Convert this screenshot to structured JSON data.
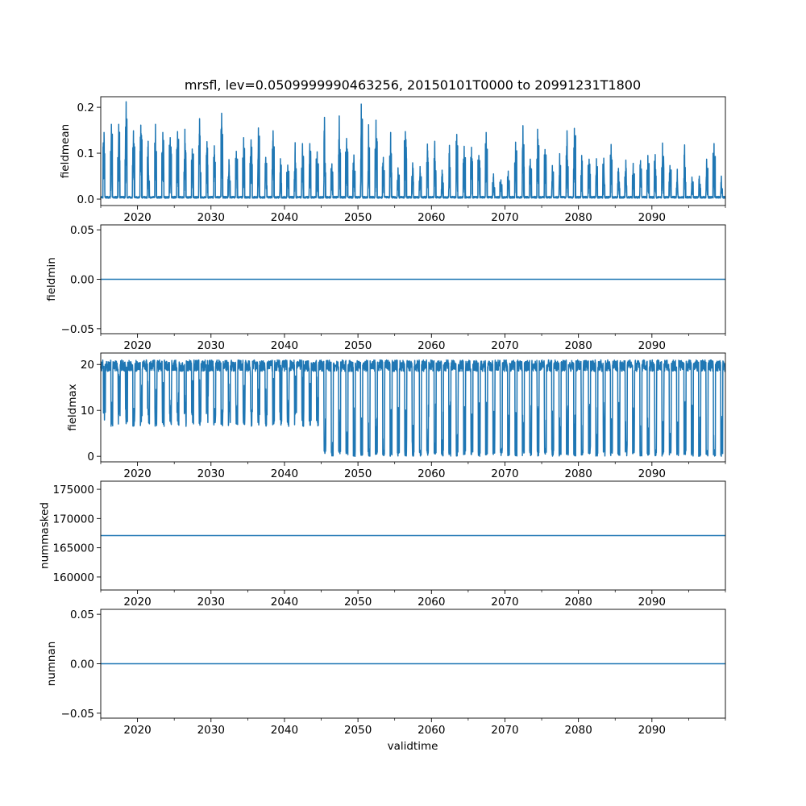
{
  "chart_data": {
    "type": "line",
    "title": "mrsfl, lev=0.0509999990463256, 20150101T0000 to 20991231T1800",
    "xlabel": "validtime",
    "xlim": [
      2015,
      2100
    ],
    "x_ticks": [
      {
        "value": 2020,
        "label": "2020"
      },
      {
        "value": 2030,
        "label": "2030"
      },
      {
        "value": 2040,
        "label": "2040"
      },
      {
        "value": 2050,
        "label": "2050"
      },
      {
        "value": 2060,
        "label": "2060"
      },
      {
        "value": 2070,
        "label": "2070"
      },
      {
        "value": 2080,
        "label": "2080"
      },
      {
        "value": 2090,
        "label": "2090"
      }
    ],
    "x_minor_ticks": [
      2015,
      2025,
      2035,
      2045,
      2055,
      2065,
      2075,
      2085,
      2095,
      2100
    ],
    "color": "#1f77b4",
    "panels": [
      {
        "ylabel": "fieldmean",
        "ylim": [
          -0.014,
          0.223
        ],
        "y_ticks": [
          {
            "value": 0.0,
            "label": "0.0"
          },
          {
            "value": 0.1,
            "label": "0.1"
          },
          {
            "value": 0.2,
            "label": "0.2"
          }
        ],
        "series": {
          "kind": "annual_peaks",
          "start_year": 2015,
          "baseline": 0.002,
          "annual_peak": [
            0.145,
            0.163,
            0.163,
            0.212,
            0.149,
            0.161,
            0.126,
            0.163,
            0.145,
            0.134,
            0.147,
            0.152,
            0.109,
            0.175,
            0.125,
            0.116,
            0.187,
            0.086,
            0.104,
            0.134,
            0.129,
            0.155,
            0.091,
            0.149,
            0.088,
            0.074,
            0.123,
            0.121,
            0.121,
            0.103,
            0.178,
            0.077,
            0.181,
            0.132,
            0.096,
            0.207,
            0.162,
            0.172,
            0.091,
            0.145,
            0.068,
            0.147,
            0.079,
            0.071,
            0.12,
            0.126,
            0.063,
            0.117,
            0.141,
            0.115,
            0.113,
            0.095,
            0.145,
            0.055,
            0.042,
            0.061,
            0.124,
            0.16,
            0.087,
            0.152,
            0.108,
            0.073,
            0.099,
            0.149,
            0.154,
            0.095,
            0.087,
            0.088,
            0.089,
            0.119,
            0.067,
            0.085,
            0.078,
            0.084,
            0.095,
            0.097,
            0.122,
            0.073,
            0.065,
            0.118,
            0.048,
            0.05,
            0.087,
            0.121,
            0.05
          ]
        }
      },
      {
        "ylabel": "fieldmin",
        "ylim": [
          -0.055,
          0.055
        ],
        "y_ticks": [
          {
            "value": 0.05,
            "label": "0.05"
          },
          {
            "value": 0.0,
            "label": "0.00"
          },
          {
            "value": -0.05,
            "label": "−0.05"
          }
        ],
        "series": {
          "kind": "constant",
          "value": 0.0
        }
      },
      {
        "ylabel": "fieldmax",
        "ylim": [
          -1.2,
          22.5
        ],
        "y_ticks": [
          {
            "value": 0,
            "label": "0"
          },
          {
            "value": 10,
            "label": "10"
          },
          {
            "value": 20,
            "label": "20"
          }
        ],
        "series": {
          "kind": "annual_range",
          "start_year": 2015,
          "high": 21.0,
          "annual_low_before_2045": 6.5,
          "annual_low_from_2045": 0.0,
          "switch_year": 2045.3
        }
      },
      {
        "ylabel": "nummasked",
        "ylim": [
          157780,
          176390
        ],
        "y_ticks": [
          {
            "value": 175000,
            "label": "175000"
          },
          {
            "value": 170000,
            "label": "170000"
          },
          {
            "value": 165000,
            "label": "165000"
          },
          {
            "value": 160000,
            "label": "160000"
          }
        ],
        "series": {
          "kind": "constant",
          "value": 167080
        }
      },
      {
        "ylabel": "numnan",
        "ylim": [
          -0.055,
          0.055
        ],
        "y_ticks": [
          {
            "value": 0.05,
            "label": "0.05"
          },
          {
            "value": 0.0,
            "label": "0.00"
          },
          {
            "value": -0.05,
            "label": "−0.05"
          }
        ],
        "series": {
          "kind": "constant",
          "value": 0.0
        }
      }
    ]
  }
}
